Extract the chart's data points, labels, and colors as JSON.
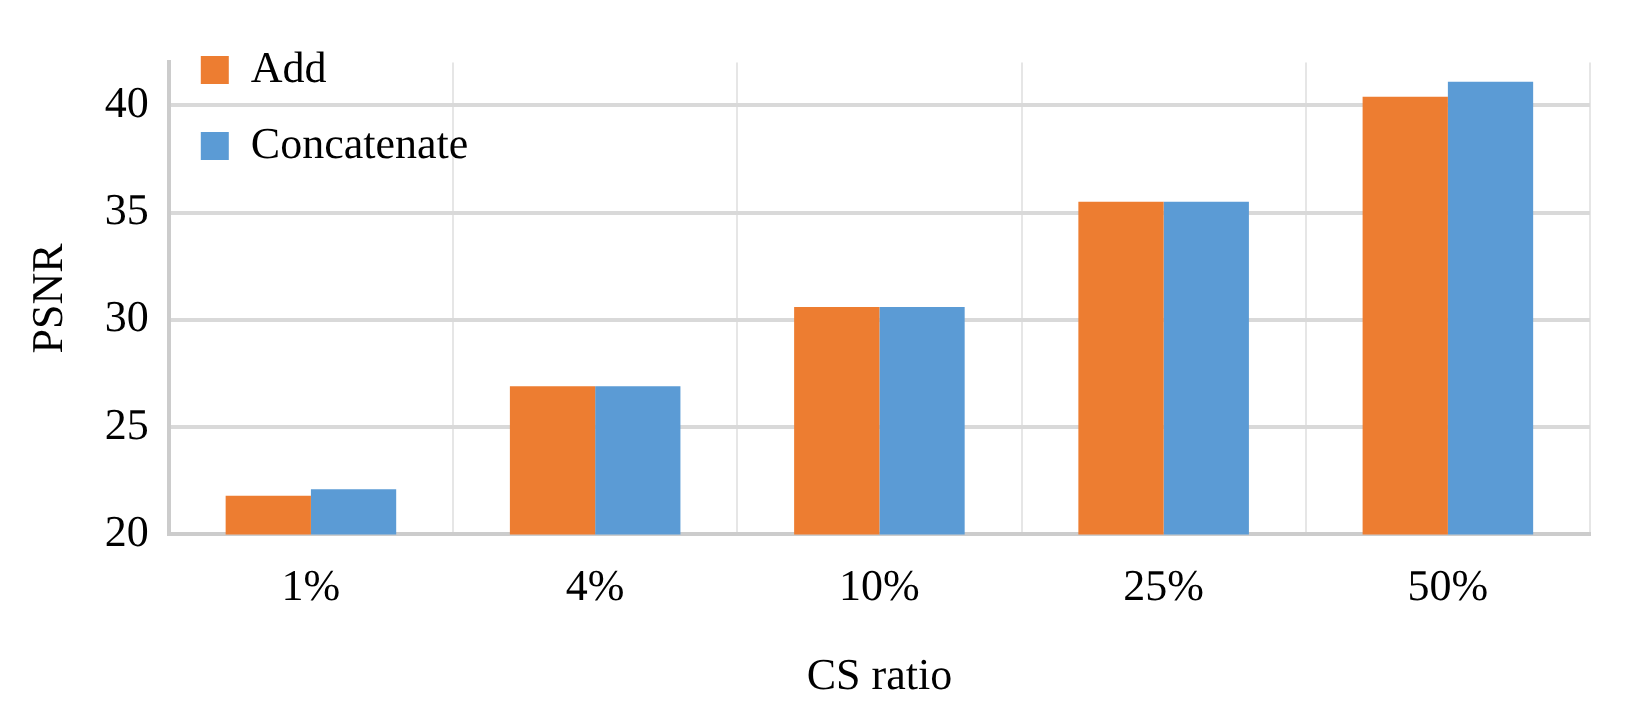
{
  "chart_data": {
    "type": "bar",
    "xlabel": "CS ratio",
    "ylabel": "PSNR",
    "categories": [
      "1%",
      "4%",
      "10%",
      "25%",
      "50%"
    ],
    "series": [
      {
        "name": "Add",
        "color": "#ed7d31",
        "values": [
          21.8,
          26.9,
          30.6,
          35.5,
          40.4
        ]
      },
      {
        "name": "Concatenate",
        "color": "#5b9bd5",
        "values": [
          22.1,
          26.9,
          30.6,
          35.5,
          41.1
        ]
      }
    ],
    "ylim": [
      20,
      42
    ],
    "yticks": [
      20,
      25,
      30,
      35,
      40
    ],
    "grid": true,
    "legend": "top left"
  }
}
